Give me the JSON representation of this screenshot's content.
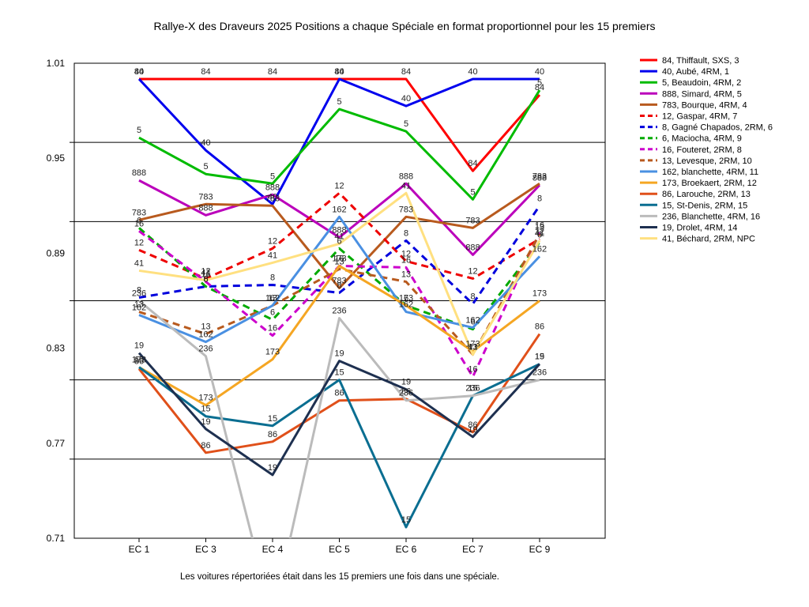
{
  "chart_data": {
    "type": "line",
    "title": "Rallye-X des Draveurs 2025  Positions a chaque Spéciale en format proportionnel pour les 15 premiers",
    "note": "Les voitures répertoriées était dans les 15 premiers une fois dans une spéciale.",
    "categories": [
      "EC 1",
      "EC 3",
      "EC 4",
      "EC 5",
      "EC 6",
      "EC 7",
      "EC 9"
    ],
    "ylim": [
      0.71,
      1.01
    ],
    "yticks": [
      0.71,
      0.77,
      0.83,
      0.89,
      0.95,
      1.01
    ],
    "grid": true,
    "legend_position": "right",
    "series": [
      {
        "name": "84, Thiffault, SXS, 3",
        "label": "84",
        "color": "#ff0000",
        "dash": false,
        "values": [
          1.0,
          1.0,
          1.0,
          1.0,
          1.0,
          0.942,
          0.99
        ]
      },
      {
        "name": "40, Aubé, 4RM, 1",
        "label": "40",
        "color": "#0000ee",
        "dash": false,
        "values": [
          1.0,
          0.955,
          0.921,
          1.0,
          0.983,
          1.0,
          1.0
        ]
      },
      {
        "name": "5, Beaudoin, 4RM, 2",
        "label": "5",
        "color": "#00bb00",
        "dash": false,
        "values": [
          0.963,
          0.94,
          0.934,
          0.981,
          0.967,
          0.924,
          0.993
        ]
      },
      {
        "name": "888, Simard, 4RM, 5",
        "label": "888",
        "color": "#bb00bb",
        "dash": false,
        "values": [
          0.936,
          0.914,
          0.927,
          0.9,
          0.934,
          0.889,
          0.933
        ]
      },
      {
        "name": "783, Bourque, 4RM, 4",
        "label": "783",
        "color": "#b85a1e",
        "dash": false,
        "values": [
          0.911,
          0.921,
          0.92,
          0.868,
          0.913,
          0.906,
          0.934
        ]
      },
      {
        "name": "12, Gaspar, 4RM, 7",
        "label": "12",
        "color": "#ee0000",
        "dash": true,
        "values": [
          0.892,
          0.874,
          0.893,
          0.928,
          0.885,
          0.874,
          0.899
        ]
      },
      {
        "name": "8, Gagné Chapados, 2RM, 6",
        "label": "8",
        "color": "#0000dd",
        "dash": true,
        "values": [
          0.862,
          0.869,
          0.87,
          0.865,
          0.898,
          0.858,
          0.92
        ]
      },
      {
        "name": "6, Maciocha, 4RM, 9",
        "label": "6",
        "color": "#00aa00",
        "dash": true,
        "values": [
          0.906,
          0.869,
          0.848,
          0.893,
          0.857,
          0.842,
          0.897
        ]
      },
      {
        "name": "16, Fouteret, 2RM, 8",
        "label": "16",
        "color": "#cc00cc",
        "dash": true,
        "values": [
          0.904,
          0.872,
          0.838,
          0.882,
          0.881,
          0.812,
          0.903
        ]
      },
      {
        "name": "13, Levesque, 2RM, 10",
        "label": "13",
        "color": "#b85a1e",
        "dash": true,
        "values": [
          0.853,
          0.839,
          0.857,
          0.88,
          0.872,
          0.826,
          0.902
        ]
      },
      {
        "name": "162, blanchette, 4RM, 11",
        "label": "162",
        "color": "#4a90e2",
        "dash": false,
        "values": [
          0.851,
          0.834,
          0.857,
          0.913,
          0.853,
          0.843,
          0.888
        ]
      },
      {
        "name": "173, Broekaert, 2RM, 12",
        "label": "173",
        "color": "#f5a623",
        "dash": false,
        "values": [
          0.818,
          0.794,
          0.823,
          0.882,
          0.857,
          0.828,
          0.86
        ]
      },
      {
        "name": "86, Larouche, 2RM, 13",
        "label": "86",
        "color": "#e0501a",
        "dash": false,
        "values": [
          0.817,
          0.764,
          0.771,
          0.797,
          0.798,
          0.777,
          0.839
        ]
      },
      {
        "name": "15, St-Denis, 2RM, 15",
        "label": "15",
        "color": "#0a6e91",
        "dash": false,
        "values": [
          0.818,
          0.787,
          0.781,
          0.81,
          0.717,
          0.8,
          0.82
        ]
      },
      {
        "name": "236, Blanchette, 4RM, 16",
        "label": "236",
        "color": "#bbbbbb",
        "dash": false,
        "values": [
          0.86,
          0.825,
          0.66,
          0.849,
          0.797,
          0.8,
          0.81
        ]
      },
      {
        "name": "19, Drolet, 4RM, 14",
        "label": "19",
        "color": "#1e3050",
        "dash": false,
        "values": [
          0.827,
          0.779,
          0.75,
          0.822,
          0.804,
          0.774,
          0.82
        ]
      },
      {
        "name": "41, Béchard, 2RM,  NPC",
        "label": "41",
        "color": "#ffe080",
        "dash": false,
        "values": [
          0.879,
          0.873,
          0.884,
          0.896,
          0.928,
          0.826,
          0.898
        ]
      }
    ]
  }
}
